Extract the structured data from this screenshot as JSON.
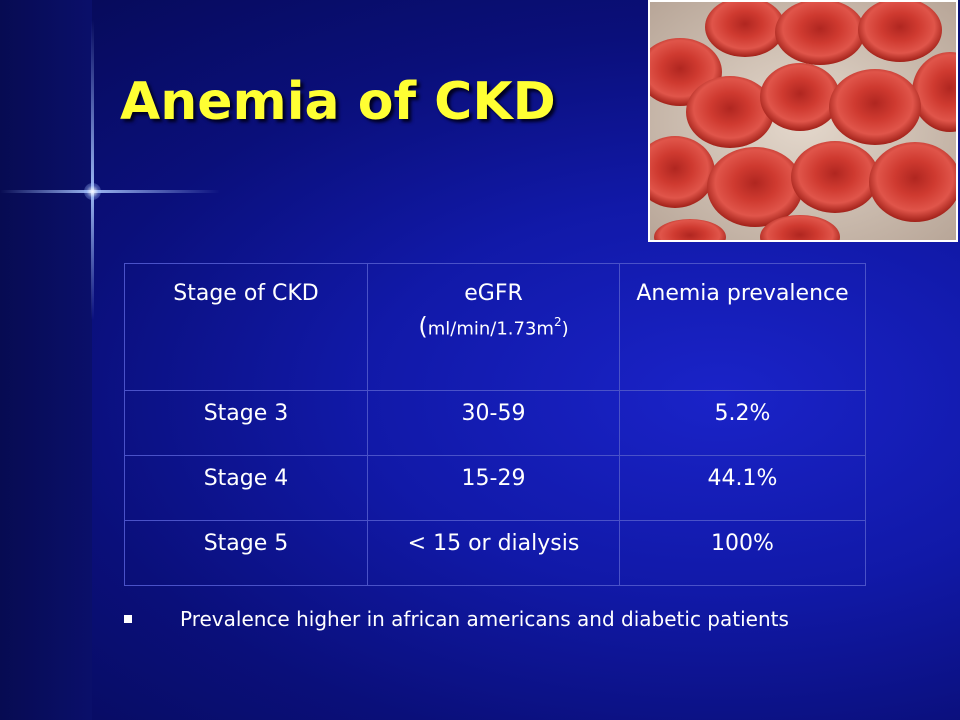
{
  "slide": {
    "title": "Anemia of CKD",
    "image": {
      "subject": "red-blood-cells-photo"
    }
  },
  "table": {
    "headers": [
      {
        "text": "Stage of CKD"
      },
      {
        "text": "eGFR",
        "unit": "ml/min/1.73m",
        "unit_sup": "2"
      },
      {
        "text": "Anemia prevalence"
      }
    ],
    "rows": [
      {
        "stage": "Stage 3",
        "egfr": "30-59",
        "prevalence": "5.2%"
      },
      {
        "stage": "Stage 4",
        "egfr": "15-29",
        "prevalence": "44.1%"
      },
      {
        "stage": "Stage 5",
        "egfr": "< 15 or dialysis",
        "prevalence": "100%"
      }
    ]
  },
  "bullets": [
    "Prevalence higher in african americans and diabetic patients"
  ],
  "colors": {
    "background": "#1119a8",
    "title": "#ffff33",
    "text": "#ffffff",
    "table_border": "#4a52c8",
    "cell_red": "#d63a32"
  }
}
